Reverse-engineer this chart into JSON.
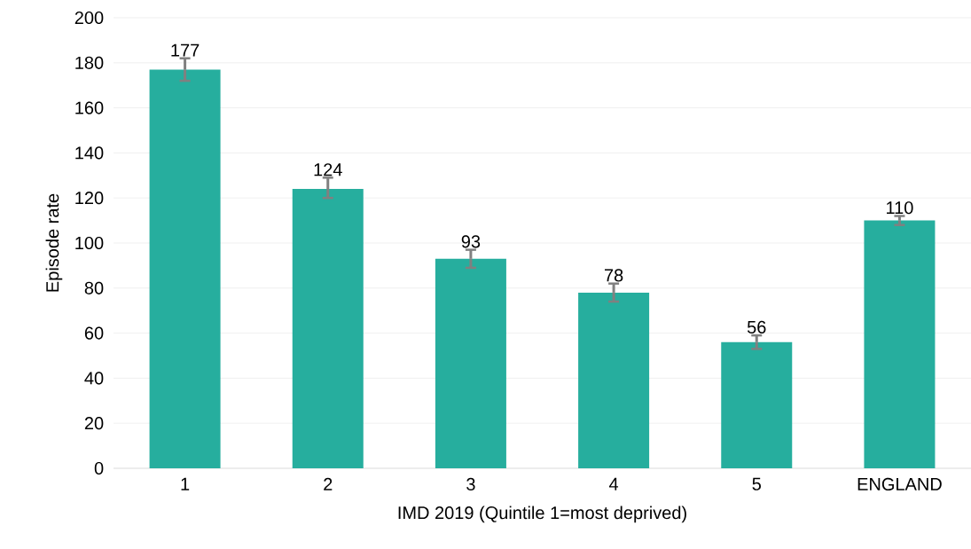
{
  "chart_data": {
    "type": "bar",
    "xlabel": "IMD 2019 (Quintile 1=most deprived)",
    "ylabel": "Episode rate",
    "categories": [
      "1",
      "2",
      "3",
      "4",
      "5",
      "ENGLAND"
    ],
    "values": [
      177,
      124,
      93,
      78,
      56,
      110
    ],
    "errors": [
      [
        172,
        182
      ],
      [
        120,
        129
      ],
      [
        89,
        97
      ],
      [
        74,
        82
      ],
      [
        53,
        59
      ],
      [
        108,
        112
      ]
    ],
    "color": "#26ae9e",
    "ylim": [
      0,
      200
    ],
    "yticks": [
      0,
      20,
      40,
      60,
      80,
      100,
      120,
      140,
      160,
      180,
      200
    ],
    "grid": "y",
    "data_labels": true
  }
}
